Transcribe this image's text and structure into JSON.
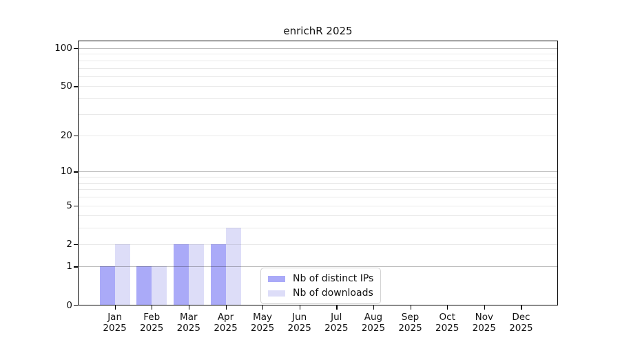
{
  "title": "enrichR 2025",
  "chart_data": {
    "type": "bar",
    "title": "enrichR 2025",
    "categories": [
      "Jan 2025",
      "Feb 2025",
      "Mar 2025",
      "Apr 2025",
      "May 2025",
      "Jun 2025",
      "Jul 2025",
      "Aug 2025",
      "Sep 2025",
      "Oct 2025",
      "Nov 2025",
      "Dec 2025"
    ],
    "series": [
      {
        "name": "Nb of distinct IPs",
        "color": "#aaaaf8",
        "values": [
          1,
          1,
          2,
          2,
          0,
          0,
          0,
          0,
          0,
          0,
          0,
          0
        ]
      },
      {
        "name": "Nb of downloads",
        "color": "#ddddf8",
        "values": [
          2,
          1,
          2,
          3,
          0,
          0,
          0,
          0,
          0,
          0,
          0,
          0
        ]
      }
    ],
    "yscale": "log10(1+x)",
    "y_ticks": [
      0,
      1,
      2,
      5,
      10,
      20,
      50,
      100
    ],
    "y_minor_ticks": [
      3,
      4,
      6,
      7,
      8,
      9,
      30,
      40,
      60,
      70,
      80,
      90
    ],
    "y_decade_ticks": [
      1,
      10,
      100
    ],
    "ylim": [
      0,
      115
    ],
    "xlabel": "",
    "ylabel": "",
    "grid": "horizontal",
    "legend_position": "inside-bottom-center",
    "colors": {
      "decade_gridline": "#bdbdbd",
      "minor_gridline": "#e9e9e9",
      "axis_box": "#000000",
      "background": "#ffffff"
    }
  }
}
